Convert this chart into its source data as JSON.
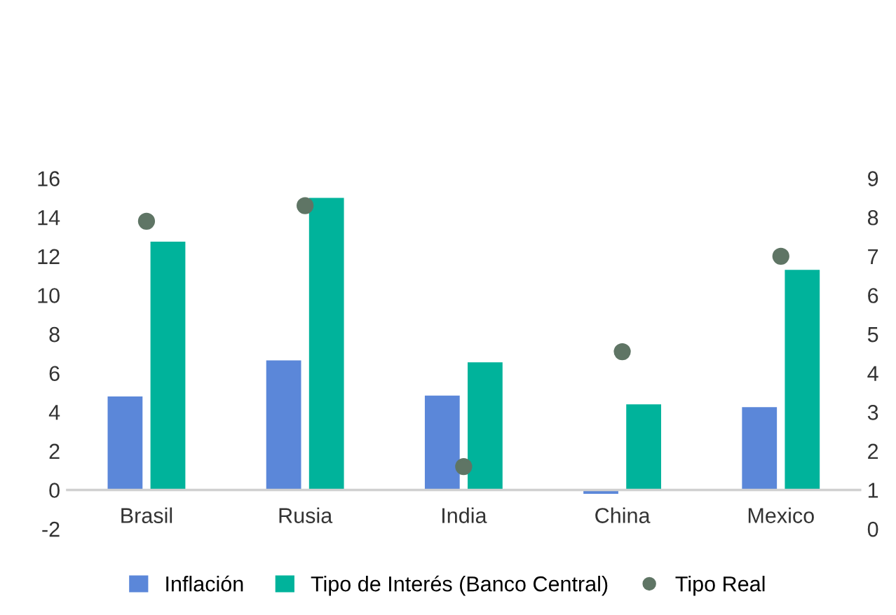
{
  "chart_data": {
    "type": "bar",
    "categories": [
      "Brasil",
      "Rusia",
      "India",
      "China",
      "Mexico"
    ],
    "series": [
      {
        "name": "Inflación",
        "color": "#5b87d9",
        "values": [
          4.8,
          6.65,
          4.85,
          -0.2,
          4.25
        ]
      },
      {
        "name": "Tipo de Interés (Banco Central)",
        "color": "#00b39b",
        "values": [
          12.75,
          15,
          6.55,
          4.4,
          11.3
        ]
      },
      {
        "name": "Tipo Real",
        "type": "scatter",
        "axis": "y2",
        "color": "#5f7565",
        "values": [
          7.9,
          8.3,
          1.6,
          4.55,
          7.0
        ]
      }
    ],
    "ylim": [
      -2,
      16
    ],
    "yticks": [
      -2,
      0,
      2,
      4,
      6,
      8,
      10,
      12,
      14,
      16
    ],
    "y2lim": [
      0,
      9
    ],
    "y2ticks": [
      0,
      1,
      2,
      3,
      4,
      5,
      6,
      7,
      8,
      9
    ],
    "marker": "circle",
    "legend": "bottom"
  }
}
